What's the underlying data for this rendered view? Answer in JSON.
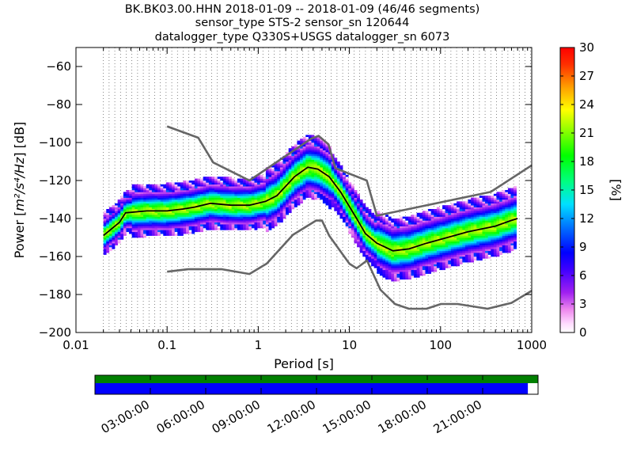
{
  "chart_data": {
    "type": "heatmap",
    "title_lines": [
      "BK.BK03.00.HHN   2018-01-09 -- 2018-01-09  (46/46 segments)",
      "sensor_type STS-2 sensor_sn 120644",
      "datalogger_type Q330S+USGS datalogger_sn 6073"
    ],
    "xlabel": "Period [s]",
    "ylabel_prefix": "Power [",
    "ylabel_unit": "m²/s⁴/Hz",
    "ylabel_suffix": "] [dB]",
    "x_scale": "log",
    "xlim": [
      0.01,
      1000
    ],
    "ylim": [
      -200,
      -50
    ],
    "x_ticks": [
      0.01,
      0.1,
      1,
      10,
      100,
      1000
    ],
    "x_tick_labels": [
      "0.01",
      "0.1",
      "1",
      "10",
      "100",
      "1000"
    ],
    "y_ticks": [
      -200,
      -180,
      -160,
      -140,
      -120,
      -100,
      -80,
      -60
    ],
    "y_tick_labels": [
      "−200",
      "−180",
      "−160",
      "−140",
      "−120",
      "−100",
      "−80",
      "−60"
    ],
    "grid": "dotted vertical lines at period bins",
    "colorbar": {
      "label": "[%]",
      "range": [
        0,
        30
      ],
      "ticks": [
        0,
        3,
        6,
        9,
        12,
        15,
        18,
        21,
        24,
        27,
        30
      ],
      "tick_labels": [
        "0",
        "3",
        "6",
        "9",
        "12",
        "15",
        "18",
        "21",
        "24",
        "27",
        "30"
      ],
      "colormap": "pqlx"
    },
    "series": [
      {
        "role": "high noise model",
        "color": "#666666",
        "points": [
          [
            0.1,
            -91.5
          ],
          [
            0.22,
            -97.5
          ],
          [
            0.32,
            -110.5
          ],
          [
            0.8,
            -120
          ],
          [
            3.8,
            -98
          ],
          [
            4.6,
            -96.5
          ],
          [
            5.9,
            -101
          ],
          [
            7.0,
            -113.5
          ],
          [
            15.5,
            -120
          ],
          [
            20,
            -138.5
          ],
          [
            354.8,
            -126
          ],
          [
            1000,
            -112
          ]
        ]
      },
      {
        "role": "low noise model",
        "color": "#666666",
        "points": [
          [
            0.1,
            -168
          ],
          [
            0.17,
            -166.7
          ],
          [
            0.4,
            -166.7
          ],
          [
            0.8,
            -169.2
          ],
          [
            1.24,
            -163.7
          ],
          [
            2.4,
            -148.6
          ],
          [
            4.3,
            -141.1
          ],
          [
            5.0,
            -141.1
          ],
          [
            6.0,
            -149
          ],
          [
            10.0,
            -163.8
          ],
          [
            12.0,
            -166.2
          ],
          [
            15.6,
            -162.1
          ],
          [
            21.9,
            -177.5
          ],
          [
            31.6,
            -185
          ],
          [
            45,
            -187.5
          ],
          [
            70,
            -187.5
          ],
          [
            101,
            -185
          ],
          [
            154,
            -185
          ],
          [
            328,
            -187.5
          ],
          [
            600,
            -184.4
          ],
          [
            1000,
            -178
          ]
        ]
      },
      {
        "role": "mode",
        "color": "#000000",
        "points": [
          [
            0.02,
            -149
          ],
          [
            0.03,
            -142
          ],
          [
            0.035,
            -137
          ],
          [
            0.06,
            -136
          ],
          [
            0.1,
            -136
          ],
          [
            0.15,
            -135
          ],
          [
            0.2,
            -134
          ],
          [
            0.3,
            -132
          ],
          [
            0.5,
            -133
          ],
          [
            0.8,
            -133
          ],
          [
            1.2,
            -131
          ],
          [
            1.6,
            -128
          ],
          [
            2.5,
            -118
          ],
          [
            3.5,
            -113
          ],
          [
            4.5,
            -114
          ],
          [
            6.0,
            -118
          ],
          [
            8.0,
            -126
          ],
          [
            12,
            -140
          ],
          [
            15,
            -148
          ],
          [
            20,
            -153
          ],
          [
            30,
            -157
          ],
          [
            45,
            -156
          ],
          [
            70,
            -153
          ],
          [
            100,
            -151
          ],
          [
            200,
            -147
          ],
          [
            400,
            -144
          ],
          [
            600,
            -141
          ],
          [
            700,
            -140
          ]
        ]
      }
    ],
    "timeline": {
      "labels": [
        "03:00:00",
        "06:00:00",
        "09:00:00",
        "12:00:00",
        "15:00:00",
        "18:00:00",
        "21:00:00"
      ],
      "range_hours": [
        0,
        24
      ],
      "label_hours": [
        3,
        6,
        9,
        12,
        15,
        18,
        21
      ],
      "data_coverage_color": "#008000",
      "psd_coverage_color": "#0000ff",
      "psd_coverage_fraction": 0.977
    }
  }
}
